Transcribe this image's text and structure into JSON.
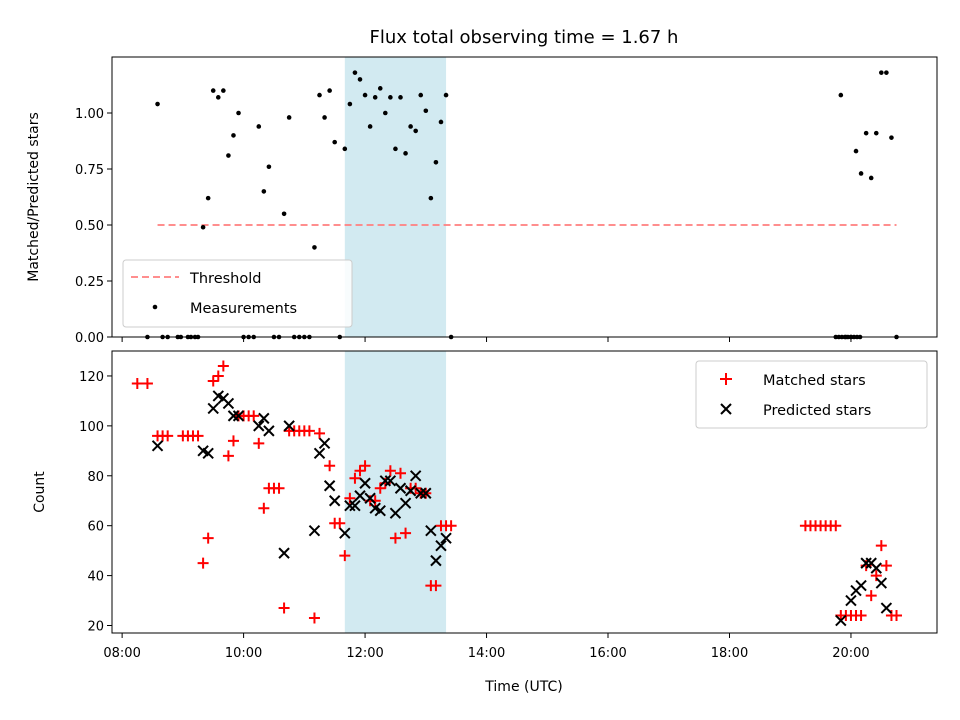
{
  "chart_data": {
    "type": "scatter",
    "title": "Flux total observing time = 1.67 h",
    "xlabel": "Time (UTC)",
    "xticks": [
      "08:00",
      "10:00",
      "12:00",
      "14:00",
      "16:00",
      "18:00",
      "20:00"
    ],
    "xlim": [
      "07:50",
      "21:25"
    ],
    "shaded_interval": [
      "11:40",
      "13:20"
    ],
    "shade_color": "#add8e6",
    "panels": [
      {
        "id": "ratio",
        "ylabel": "Matched/Predicted stars",
        "ylim": [
          0,
          1.25
        ],
        "yticks": [
          "0.00",
          "0.25",
          "0.50",
          "0.75",
          "1.00"
        ],
        "legend_position": "lower left",
        "series": [
          {
            "name": "Threshold",
            "kind": "dashed-line",
            "color": "#ff7f7f",
            "x": [
              "08:35",
              "20:45"
            ],
            "y": [
              0.5,
              0.5
            ]
          },
          {
            "name": "Measurements",
            "kind": "dot",
            "color": "#000000",
            "points": [
              [
                "08:25",
                0
              ],
              [
                "08:35",
                1.04
              ],
              [
                "08:40",
                0
              ],
              [
                "08:45",
                0
              ],
              [
                "08:55",
                0
              ],
              [
                "08:58",
                0
              ],
              [
                "09:05",
                0
              ],
              [
                "09:08",
                0
              ],
              [
                "09:12",
                0
              ],
              [
                "09:15",
                0
              ],
              [
                "09:20",
                0.49
              ],
              [
                "09:25",
                0.62
              ],
              [
                "09:30",
                1.1
              ],
              [
                "09:35",
                1.07
              ],
              [
                "09:40",
                1.1
              ],
              [
                "09:45",
                0.81
              ],
              [
                "09:50",
                0.9
              ],
              [
                "09:55",
                1.0
              ],
              [
                "10:00",
                0
              ],
              [
                "10:05",
                0
              ],
              [
                "10:10",
                0
              ],
              [
                "10:15",
                0.94
              ],
              [
                "10:20",
                0.65
              ],
              [
                "10:25",
                0.76
              ],
              [
                "10:30",
                0
              ],
              [
                "10:35",
                0
              ],
              [
                "10:40",
                0.55
              ],
              [
                "10:45",
                0.98
              ],
              [
                "10:50",
                0
              ],
              [
                "10:55",
                0
              ],
              [
                "11:00",
                0
              ],
              [
                "11:05",
                0
              ],
              [
                "11:10",
                0.4
              ],
              [
                "11:15",
                1.08
              ],
              [
                "11:20",
                0.98
              ],
              [
                "11:25",
                1.1
              ],
              [
                "11:30",
                0.87
              ],
              [
                "11:35",
                0
              ],
              [
                "11:40",
                0.84
              ],
              [
                "11:45",
                1.04
              ],
              [
                "11:50",
                1.18
              ],
              [
                "11:55",
                1.15
              ],
              [
                "12:00",
                1.08
              ],
              [
                "12:05",
                0.94
              ],
              [
                "12:10",
                1.07
              ],
              [
                "12:15",
                1.11
              ],
              [
                "12:20",
                1.0
              ],
              [
                "12:25",
                1.07
              ],
              [
                "12:30",
                0.84
              ],
              [
                "12:35",
                1.07
              ],
              [
                "12:40",
                0.82
              ],
              [
                "12:45",
                0.94
              ],
              [
                "12:50",
                0.92
              ],
              [
                "12:55",
                1.08
              ],
              [
                "13:00",
                1.01
              ],
              [
                "13:05",
                0.62
              ],
              [
                "13:10",
                0.78
              ],
              [
                "13:15",
                0.96
              ],
              [
                "13:20",
                1.08
              ],
              [
                "13:25",
                0
              ],
              [
                "19:45",
                0
              ],
              [
                "19:48",
                0
              ],
              [
                "19:51",
                0
              ],
              [
                "19:54",
                0
              ],
              [
                "19:57",
                0
              ],
              [
                "20:00",
                0
              ],
              [
                "20:03",
                0
              ],
              [
                "20:06",
                0
              ],
              [
                "20:09",
                0
              ],
              [
                "19:50",
                1.08
              ],
              [
                "19:55",
                0
              ],
              [
                "20:00",
                0
              ],
              [
                "20:05",
                0.83
              ],
              [
                "20:10",
                0.73
              ],
              [
                "20:15",
                0.91
              ],
              [
                "20:20",
                0.71
              ],
              [
                "20:25",
                0.91
              ],
              [
                "20:30",
                1.18
              ],
              [
                "20:35",
                1.18
              ],
              [
                "20:40",
                0.89
              ],
              [
                "20:45",
                0
              ]
            ]
          }
        ]
      },
      {
        "id": "count",
        "ylabel": "Count",
        "ylim": [
          17,
          130
        ],
        "yticks": [
          "20",
          "40",
          "60",
          "80",
          "100",
          "120"
        ],
        "legend_position": "upper right",
        "series": [
          {
            "name": "Matched stars",
            "kind": "plus",
            "color": "#ff0000",
            "points": [
              [
                "08:15",
                117
              ],
              [
                "08:25",
                117
              ],
              [
                "08:35",
                96
              ],
              [
                "08:40",
                96
              ],
              [
                "08:45",
                96
              ],
              [
                "09:00",
                96
              ],
              [
                "09:05",
                96
              ],
              [
                "09:10",
                96
              ],
              [
                "09:15",
                96
              ],
              [
                "09:20",
                45
              ],
              [
                "09:25",
                55
              ],
              [
                "09:30",
                118
              ],
              [
                "09:35",
                120
              ],
              [
                "09:40",
                124
              ],
              [
                "09:45",
                88
              ],
              [
                "09:50",
                94
              ],
              [
                "09:55",
                104
              ],
              [
                "10:00",
                104
              ],
              [
                "10:05",
                104
              ],
              [
                "10:10",
                104
              ],
              [
                "10:15",
                93
              ],
              [
                "10:20",
                67
              ],
              [
                "10:25",
                75
              ],
              [
                "10:30",
                75
              ],
              [
                "10:35",
                75
              ],
              [
                "10:40",
                27
              ],
              [
                "10:45",
                98
              ],
              [
                "10:50",
                98
              ],
              [
                "10:55",
                98
              ],
              [
                "11:00",
                98
              ],
              [
                "11:05",
                98
              ],
              [
                "11:10",
                23
              ],
              [
                "11:15",
                97
              ],
              [
                "11:25",
                84
              ],
              [
                "11:30",
                61
              ],
              [
                "11:35",
                61
              ],
              [
                "11:40",
                48
              ],
              [
                "11:45",
                71
              ],
              [
                "11:50",
                79
              ],
              [
                "11:55",
                82
              ],
              [
                "12:00",
                84
              ],
              [
                "12:05",
                70
              ],
              [
                "12:10",
                70
              ],
              [
                "12:15",
                75
              ],
              [
                "12:20",
                77
              ],
              [
                "12:25",
                82
              ],
              [
                "12:30",
                55
              ],
              [
                "12:35",
                81
              ],
              [
                "12:40",
                57
              ],
              [
                "12:45",
                75
              ],
              [
                "12:50",
                75
              ],
              [
                "12:55",
                73
              ],
              [
                "13:00",
                73
              ],
              [
                "13:05",
                36
              ],
              [
                "13:10",
                36
              ],
              [
                "13:15",
                60
              ],
              [
                "13:20",
                60
              ],
              [
                "13:25",
                60
              ],
              [
                "19:15",
                60
              ],
              [
                "19:20",
                60
              ],
              [
                "19:25",
                60
              ],
              [
                "19:30",
                60
              ],
              [
                "19:35",
                60
              ],
              [
                "19:40",
                60
              ],
              [
                "19:45",
                60
              ],
              [
                "19:50",
                24
              ],
              [
                "19:55",
                24
              ],
              [
                "20:00",
                24
              ],
              [
                "20:05",
                24
              ],
              [
                "20:10",
                24
              ],
              [
                "20:15",
                44
              ],
              [
                "20:20",
                32
              ],
              [
                "20:25",
                40
              ],
              [
                "20:30",
                52
              ],
              [
                "20:35",
                44
              ],
              [
                "20:40",
                24
              ],
              [
                "20:45",
                24
              ]
            ]
          },
          {
            "name": "Predicted stars",
            "kind": "cross",
            "color": "#000000",
            "points": [
              [
                "08:35",
                92
              ],
              [
                "09:20",
                90
              ],
              [
                "09:25",
                89
              ],
              [
                "09:30",
                107
              ],
              [
                "09:35",
                112
              ],
              [
                "09:40",
                111
              ],
              [
                "09:45",
                109
              ],
              [
                "09:50",
                104
              ],
              [
                "09:55",
                104
              ],
              [
                "10:15",
                100
              ],
              [
                "10:20",
                103
              ],
              [
                "10:25",
                98
              ],
              [
                "10:40",
                49
              ],
              [
                "10:45",
                100
              ],
              [
                "11:10",
                58
              ],
              [
                "11:15",
                89
              ],
              [
                "11:20",
                93
              ],
              [
                "11:25",
                76
              ],
              [
                "11:30",
                70
              ],
              [
                "11:40",
                57
              ],
              [
                "11:45",
                68
              ],
              [
                "11:50",
                68
              ],
              [
                "11:55",
                72
              ],
              [
                "12:00",
                77
              ],
              [
                "12:05",
                71
              ],
              [
                "12:10",
                67
              ],
              [
                "12:15",
                66
              ],
              [
                "12:20",
                78
              ],
              [
                "12:25",
                78
              ],
              [
                "12:30",
                65
              ],
              [
                "12:35",
                75
              ],
              [
                "12:40",
                69
              ],
              [
                "12:45",
                74
              ],
              [
                "12:50",
                80
              ],
              [
                "12:55",
                73
              ],
              [
                "13:00",
                73
              ],
              [
                "13:05",
                58
              ],
              [
                "13:10",
                46
              ],
              [
                "13:15",
                52
              ],
              [
                "13:20",
                55
              ],
              [
                "19:50",
                22
              ],
              [
                "20:00",
                30
              ],
              [
                "20:05",
                34
              ],
              [
                "20:10",
                36
              ],
              [
                "20:15",
                45
              ],
              [
                "20:20",
                45
              ],
              [
                "20:25",
                43
              ],
              [
                "20:30",
                37
              ],
              [
                "20:35",
                27
              ]
            ]
          }
        ]
      }
    ]
  }
}
